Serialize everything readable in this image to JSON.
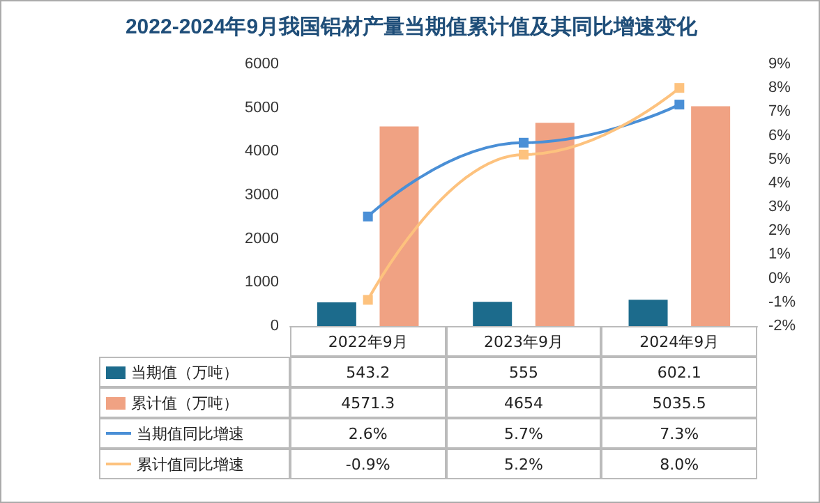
{
  "chart_data": {
    "type": "bar",
    "title": "2022-2024年9月我国铝材产量当期值累计值及其同比增速变化",
    "categories": [
      "2022年9月",
      "2023年9月",
      "2024年9月"
    ],
    "series": [
      {
        "name": "当期值（万吨）",
        "color": "#1c6b8c",
        "values": [
          543.2,
          555,
          602.1
        ],
        "value_labels": [
          "543.2",
          "555",
          "602.1"
        ]
      },
      {
        "name": "累计值（万吨）",
        "color": "#f0a283",
        "values": [
          4571.3,
          4654,
          5035.5
        ],
        "value_labels": [
          "4571.3",
          "4654",
          "5035.5"
        ]
      },
      {
        "name": "当期值同比增速",
        "type": "line",
        "axis": "y2",
        "color": "#4a8fd6",
        "marker": "square",
        "values": [
          2.6,
          5.7,
          7.3
        ],
        "value_labels": [
          "2.6%",
          "5.7%",
          "7.3%"
        ]
      },
      {
        "name": "累计值同比增速",
        "type": "line",
        "axis": "y2",
        "color": "#fdc27e",
        "marker": "square",
        "values": [
          -0.9,
          5.2,
          8.0
        ],
        "value_labels": [
          "-0.9%",
          "5.2%",
          "8.0%"
        ]
      }
    ],
    "ylim": [
      0,
      6000
    ],
    "yticks": [
      0,
      1000,
      2000,
      3000,
      4000,
      5000,
      6000
    ],
    "y2lim": [
      -2,
      9
    ],
    "y2ticks": [
      {
        "value": -2,
        "label": "-2%"
      },
      {
        "value": -1,
        "label": "-1%"
      },
      {
        "value": 0,
        "label": "0%"
      },
      {
        "value": 1,
        "label": "1%"
      },
      {
        "value": 2,
        "label": "2%"
      },
      {
        "value": 3,
        "label": "3%"
      },
      {
        "value": 4,
        "label": "4%"
      },
      {
        "value": 5,
        "label": "5%"
      },
      {
        "value": 6,
        "label": "6%"
      },
      {
        "value": 7,
        "label": "7%"
      },
      {
        "value": 8,
        "label": "8%"
      },
      {
        "value": 9,
        "label": "9%"
      }
    ],
    "legend": "bottom",
    "grid": false
  }
}
